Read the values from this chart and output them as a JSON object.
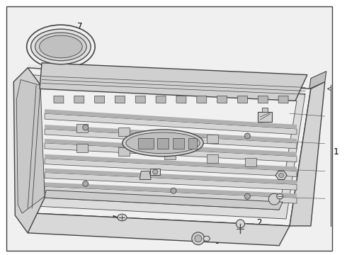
{
  "fig_bg": "#ffffff",
  "bg_fill": "#e8eaec",
  "line_color": "#444444",
  "dark_line": "#222222",
  "light_fill": "#f0f0f0",
  "med_fill": "#d8d8d8",
  "dark_fill": "#b8b8b8"
}
